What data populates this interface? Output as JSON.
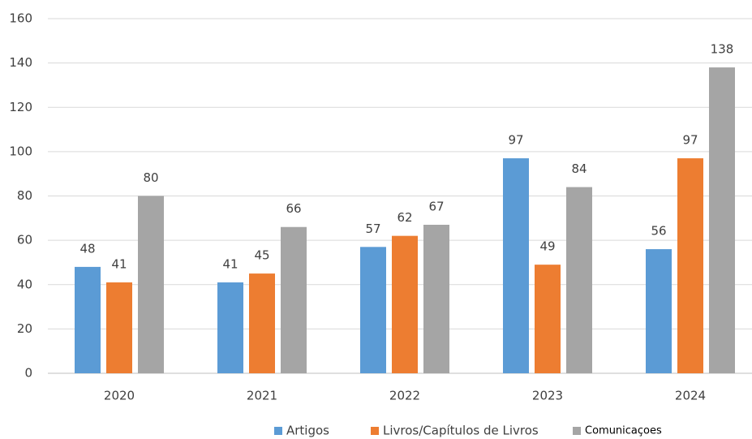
{
  "chart_data": {
    "type": "bar",
    "categories": [
      "2020",
      "2021",
      "2022",
      "2023",
      "2024"
    ],
    "series": [
      {
        "name": "Artigos",
        "color": "#5b9bd5",
        "values": [
          48,
          41,
          57,
          97,
          56
        ]
      },
      {
        "name": "Livros/Capítulos de Livros",
        "color": "#ed7d31",
        "values": [
          41,
          45,
          62,
          49,
          97
        ]
      },
      {
        "name": "Comunicaçoes",
        "color": "#a5a5a5",
        "values": [
          80,
          66,
          67,
          84,
          138
        ]
      }
    ],
    "ylim": [
      0,
      160
    ],
    "yticks": [
      0,
      20,
      40,
      60,
      80,
      100,
      120,
      140,
      160
    ],
    "grid": true,
    "legend": "bottom"
  }
}
